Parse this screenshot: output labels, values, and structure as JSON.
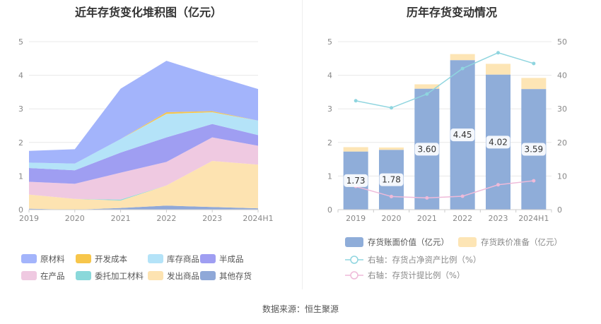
{
  "left_chart": {
    "title": "近年存货变化堆积图（亿元）"
  },
  "right_chart": {
    "title": "历年存货变动情况"
  },
  "footer": "数据来源：恒生聚源",
  "colors": {
    "原材料": "#a3b4fb",
    "开发成本": "#f7c64b",
    "库存商品": "#b4e3f8",
    "半成品": "#9f9ef2",
    "在产品": "#efc9e1",
    "委托加工材料": "#8ad8da",
    "发出商品": "#fde3b1",
    "其他存货": "#8fa8d8",
    "bar_book": "#8fadd9",
    "bar_reserve": "#fde5b5",
    "line_ratio": "#8fd5df",
    "line_provision": "#efbad9",
    "grid": "#e8e8e8",
    "axis_text": "#888888"
  },
  "chart_data": [
    {
      "type": "area",
      "title": "近年存货变化堆积图（亿元）",
      "stacked": true,
      "categories": [
        "2019",
        "2020",
        "2021",
        "2022",
        "2023",
        "2024H1"
      ],
      "ylim": [
        0,
        5
      ],
      "yticks": [
        0,
        1,
        2,
        3,
        4,
        5
      ],
      "grid": true,
      "legend_position": "bottom",
      "series": [
        {
          "name": "其他存货",
          "values": [
            0.03,
            0.0,
            0.05,
            0.12,
            0.08,
            0.04
          ]
        },
        {
          "name": "发出商品",
          "values": [
            0.42,
            0.32,
            0.22,
            0.6,
            1.37,
            1.3
          ]
        },
        {
          "name": "委托加工材料",
          "values": [
            0.0,
            0.0,
            0.03,
            0.0,
            0.0,
            0.0
          ]
        },
        {
          "name": "在产品",
          "values": [
            0.38,
            0.45,
            0.8,
            0.7,
            0.7,
            0.56
          ]
        },
        {
          "name": "半成品",
          "values": [
            0.41,
            0.4,
            0.6,
            0.73,
            0.4,
            0.32
          ]
        },
        {
          "name": "库存商品",
          "values": [
            0.16,
            0.2,
            0.4,
            0.7,
            0.35,
            0.43
          ]
        },
        {
          "name": "开发成本",
          "values": [
            0.0,
            0.0,
            0.0,
            0.05,
            0.03,
            0.0
          ]
        },
        {
          "name": "原材料",
          "values": [
            0.35,
            0.43,
            1.5,
            1.53,
            1.07,
            0.94
          ]
        }
      ],
      "legend": [
        "原材料",
        "开发成本",
        "库存商品",
        "半成品",
        "在产品",
        "委托加工材料",
        "发出商品",
        "其他存货"
      ]
    },
    {
      "type": "bar",
      "title": "历年存货变动情况",
      "stacked": true,
      "categories": [
        "2019",
        "2020",
        "2021",
        "2022",
        "2023",
        "2024H1"
      ],
      "ylim": [
        0,
        5
      ],
      "yticks": [
        0,
        1,
        2,
        3,
        4,
        5
      ],
      "y2lim": [
        0,
        50
      ],
      "y2ticks": [
        0,
        10,
        20,
        30,
        40,
        50
      ],
      "grid": true,
      "legend_position": "bottom",
      "series": [
        {
          "name": "存货账面价值（亿元）",
          "values": [
            1.73,
            1.78,
            3.6,
            4.45,
            4.02,
            3.59
          ],
          "labels": [
            "1.73",
            "1.78",
            "3.60",
            "4.45",
            "4.02",
            "3.59"
          ]
        },
        {
          "name": "存货跌价准备（亿元）",
          "values": [
            0.13,
            0.07,
            0.13,
            0.18,
            0.32,
            0.33
          ]
        }
      ],
      "lines": [
        {
          "name": "右轴：存货占净资产比例（%）",
          "axis": "right",
          "values": [
            32.4,
            30.3,
            34.4,
            42.0,
            46.7,
            43.5
          ]
        },
        {
          "name": "右轴：存货计提比例（%）",
          "axis": "right",
          "values": [
            6.9,
            3.9,
            3.5,
            4.0,
            7.4,
            8.6
          ]
        }
      ]
    }
  ]
}
